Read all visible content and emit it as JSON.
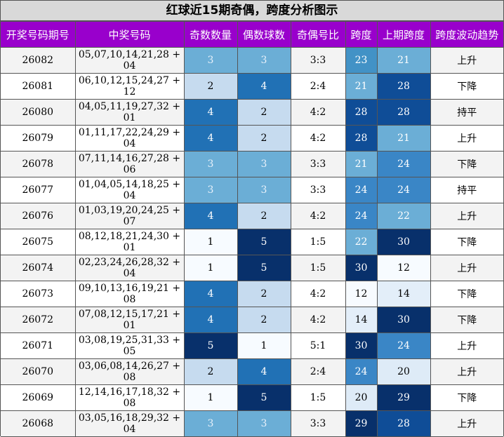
{
  "chart_data": {
    "type": "table",
    "title": "红球近15期奇偶，跨度分析图示",
    "columns": [
      "开奖号码期号",
      "中奖号码",
      "奇数数量",
      "偶数球数",
      "奇偶号比",
      "跨度",
      "上期跨度",
      "跨度波动趋势"
    ],
    "rows": [
      {
        "issue": "26082",
        "numbers": "05,07,10,14,21,28 + 04",
        "odd": 3,
        "even": 3,
        "ratio": "3:3",
        "span": 23,
        "prev_span": 21,
        "trend": "上升"
      },
      {
        "issue": "26081",
        "numbers": "06,10,12,15,24,27 + 12",
        "odd": 2,
        "even": 4,
        "ratio": "2:4",
        "span": 21,
        "prev_span": 28,
        "trend": "下降"
      },
      {
        "issue": "26080",
        "numbers": "04,05,11,19,27,32 + 01",
        "odd": 4,
        "even": 2,
        "ratio": "4:2",
        "span": 28,
        "prev_span": 28,
        "trend": "持平"
      },
      {
        "issue": "26079",
        "numbers": "01,11,17,22,24,29 + 04",
        "odd": 4,
        "even": 2,
        "ratio": "4:2",
        "span": 28,
        "prev_span": 21,
        "trend": "上升"
      },
      {
        "issue": "26078",
        "numbers": "07,11,14,16,27,28 + 06",
        "odd": 3,
        "even": 3,
        "ratio": "3:3",
        "span": 21,
        "prev_span": 24,
        "trend": "下降"
      },
      {
        "issue": "26077",
        "numbers": "01,04,05,14,18,25 + 04",
        "odd": 3,
        "even": 3,
        "ratio": "3:3",
        "span": 24,
        "prev_span": 24,
        "trend": "持平"
      },
      {
        "issue": "26076",
        "numbers": "01,03,19,20,24,25 + 07",
        "odd": 4,
        "even": 2,
        "ratio": "4:2",
        "span": 24,
        "prev_span": 22,
        "trend": "上升"
      },
      {
        "issue": "26075",
        "numbers": "08,12,18,21,24,30 + 01",
        "odd": 1,
        "even": 5,
        "ratio": "1:5",
        "span": 22,
        "prev_span": 30,
        "trend": "下降"
      },
      {
        "issue": "26074",
        "numbers": "02,23,24,26,28,32 + 04",
        "odd": 1,
        "even": 5,
        "ratio": "1:5",
        "span": 30,
        "prev_span": 12,
        "trend": "上升"
      },
      {
        "issue": "26073",
        "numbers": "09,10,13,16,19,21 + 08",
        "odd": 4,
        "even": 2,
        "ratio": "4:2",
        "span": 12,
        "prev_span": 14,
        "trend": "下降"
      },
      {
        "issue": "26072",
        "numbers": "07,08,12,15,17,21 + 01",
        "odd": 4,
        "even": 2,
        "ratio": "4:2",
        "span": 14,
        "prev_span": 30,
        "trend": "下降"
      },
      {
        "issue": "26071",
        "numbers": "03,08,19,25,31,33 + 05",
        "odd": 5,
        "even": 1,
        "ratio": "5:1",
        "span": 30,
        "prev_span": 24,
        "trend": "上升"
      },
      {
        "issue": "26070",
        "numbers": "03,06,08,14,26,27 + 08",
        "odd": 2,
        "even": 4,
        "ratio": "2:4",
        "span": 24,
        "prev_span": 20,
        "trend": "上升"
      },
      {
        "issue": "26069",
        "numbers": "12,14,16,17,18,32 + 08",
        "odd": 1,
        "even": 5,
        "ratio": "1:5",
        "span": 20,
        "prev_span": 29,
        "trend": "下降"
      },
      {
        "issue": "26068",
        "numbers": "03,05,16,18,29,32 + 04",
        "odd": 3,
        "even": 3,
        "ratio": "3:3",
        "span": 29,
        "prev_span": 28,
        "trend": "上升"
      }
    ],
    "colors": {
      "header_bg": "#9900cc",
      "header_text": "#ffffff",
      "title_bg": "#d9d9d9",
      "scale": [
        "#f7fbff",
        "#c6dbef",
        "#6baed6",
        "#2171b5",
        "#08306b"
      ]
    }
  }
}
